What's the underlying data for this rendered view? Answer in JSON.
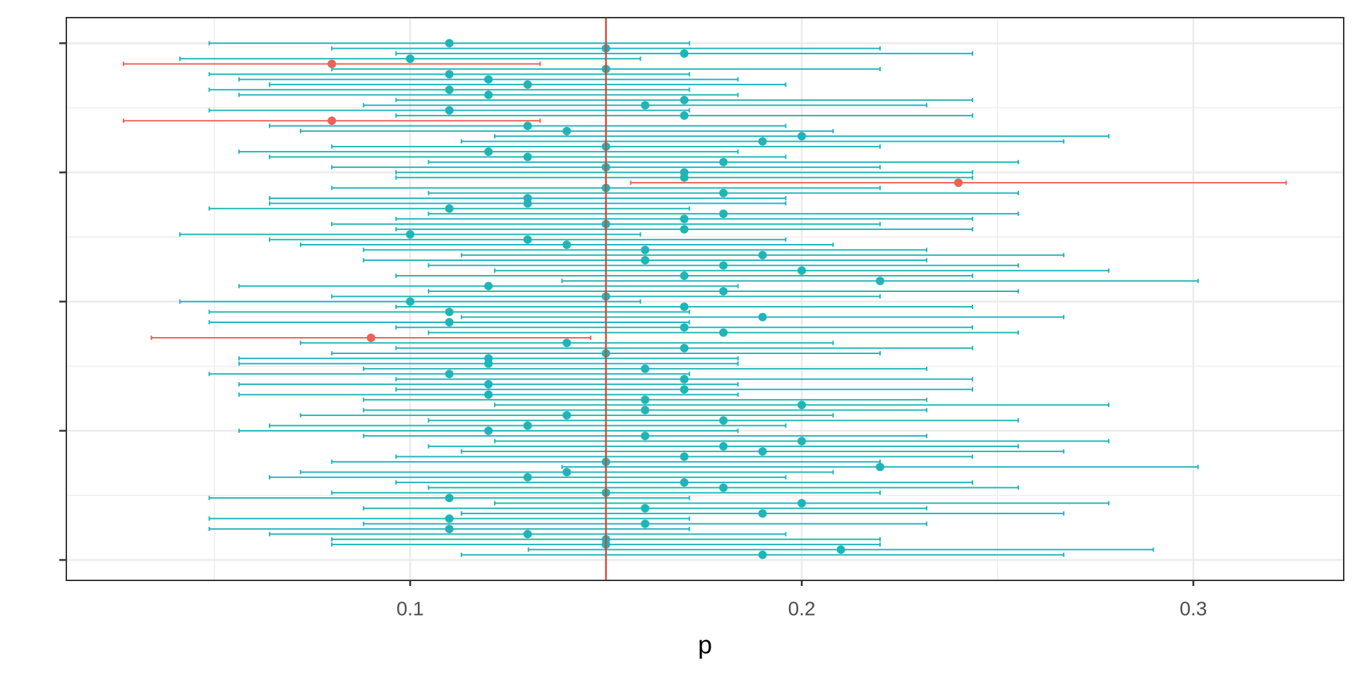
{
  "chart_data": {
    "type": "errorbar",
    "xlabel": "p",
    "y": [
      100,
      99,
      98,
      97,
      96,
      95,
      94,
      93,
      92,
      91,
      90,
      89,
      88,
      87,
      86,
      85,
      84,
      83,
      82,
      81,
      80,
      79,
      78,
      77,
      76,
      75,
      74,
      73,
      72,
      71,
      70,
      69,
      68,
      67,
      66,
      65,
      64,
      63,
      62,
      61,
      60,
      59,
      58,
      57,
      56,
      55,
      54,
      53,
      52,
      51,
      50,
      49,
      48,
      47,
      46,
      45,
      44,
      43,
      42,
      41,
      40,
      39,
      38,
      37,
      36,
      35,
      34,
      33,
      32,
      31,
      30,
      29,
      28,
      27,
      26,
      25,
      24,
      23,
      22,
      21,
      20,
      19,
      18,
      17,
      16,
      15,
      14,
      13,
      12,
      11,
      10,
      9,
      8,
      7,
      6,
      5,
      4,
      3,
      2,
      1
    ],
    "values": [
      0.11,
      0.15,
      0.17,
      0.1,
      0.08,
      0.15,
      0.11,
      0.12,
      0.13,
      0.11,
      0.12,
      0.17,
      0.16,
      0.11,
      0.17,
      0.08,
      0.13,
      0.14,
      0.2,
      0.19,
      0.15,
      0.12,
      0.13,
      0.18,
      0.15,
      0.17,
      0.17,
      0.24,
      0.15,
      0.18,
      0.13,
      0.13,
      0.11,
      0.18,
      0.17,
      0.15,
      0.17,
      0.1,
      0.13,
      0.14,
      0.16,
      0.19,
      0.16,
      0.18,
      0.2,
      0.17,
      0.22,
      0.12,
      0.18,
      0.15,
      0.1,
      0.17,
      0.11,
      0.19,
      0.11,
      0.17,
      0.18,
      0.09,
      0.14,
      0.17,
      0.15,
      0.12,
      0.12,
      0.16,
      0.11,
      0.17,
      0.12,
      0.17,
      0.12,
      0.16,
      0.2,
      0.16,
      0.14,
      0.18,
      0.13,
      0.12,
      0.16,
      0.2,
      0.18,
      0.19,
      0.17,
      0.15,
      0.22,
      0.14,
      0.13,
      0.17,
      0.18,
      0.15,
      0.11,
      0.2,
      0.16,
      0.19,
      0.11,
      0.16,
      0.11,
      0.13,
      0.15,
      0.15,
      0.21,
      0.19
    ],
    "errors": [
      0.0613,
      0.07,
      0.0736,
      0.0588,
      0.0532,
      0.07,
      0.0613,
      0.0637,
      0.0659,
      0.0613,
      0.0637,
      0.0736,
      0.0719,
      0.0613,
      0.0736,
      0.0532,
      0.0659,
      0.068,
      0.0784,
      0.0769,
      0.07,
      0.0637,
      0.0659,
      0.0753,
      0.07,
      0.0736,
      0.0736,
      0.0837,
      0.07,
      0.0753,
      0.0659,
      0.0659,
      0.0613,
      0.0753,
      0.0736,
      0.07,
      0.0736,
      0.0588,
      0.0659,
      0.068,
      0.0719,
      0.0769,
      0.0719,
      0.0753,
      0.0784,
      0.0736,
      0.0812,
      0.0637,
      0.0753,
      0.07,
      0.0588,
      0.0736,
      0.0613,
      0.0769,
      0.0613,
      0.0736,
      0.0753,
      0.0561,
      0.068,
      0.0736,
      0.07,
      0.0637,
      0.0637,
      0.0719,
      0.0613,
      0.0736,
      0.0637,
      0.0736,
      0.0637,
      0.0719,
      0.0784,
      0.0719,
      0.068,
      0.0753,
      0.0659,
      0.0637,
      0.0719,
      0.0784,
      0.0753,
      0.0769,
      0.0736,
      0.07,
      0.0812,
      0.068,
      0.0659,
      0.0736,
      0.0753,
      0.07,
      0.0613,
      0.0784,
      0.0719,
      0.0769,
      0.0613,
      0.0719,
      0.0613,
      0.0659,
      0.07,
      0.07,
      0.0798,
      0.0769
    ],
    "color_covers": "#1fb5b8",
    "color_misses": "#ee6158",
    "reference_line": {
      "value": 0.15,
      "color": "#d9432f"
    },
    "xlim": [
      0.0122,
      0.3384
    ],
    "xticks": [
      0.1,
      0.2,
      0.3
    ],
    "xminor": [
      0.05,
      0.15,
      0.25
    ],
    "ylim": [
      -3.95,
      104.95
    ],
    "yticks": [
      0,
      25,
      50,
      75,
      100
    ],
    "grid": true
  }
}
